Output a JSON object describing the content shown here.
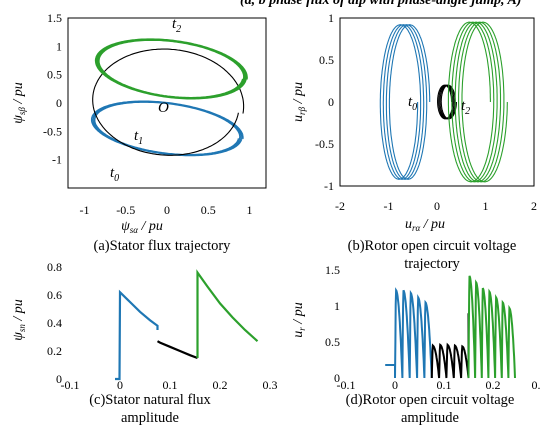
{
  "figure": {
    "top_caption_fragment": "(a, b phase flux of dip with phase-angle jump, A)"
  },
  "chart_data": [
    {
      "id": "a",
      "type": "line",
      "caption": "(a)Stator flux trajectory",
      "xlabel": "ψ_sα / pu",
      "ylabel": "ψ_sβ / pu",
      "xlim": [
        -1.2,
        1.2
      ],
      "ylim": [
        -1.5,
        1.5
      ],
      "xticks": [
        "-1",
        "-0.5",
        "0",
        "0.5",
        "1"
      ],
      "yticks": [
        "1.5",
        "1",
        "0.5",
        "0",
        "-0.5",
        "-1"
      ],
      "annotations": [
        "t2",
        "O",
        "t1",
        "t0"
      ],
      "series": [
        {
          "color": "#1f77b4",
          "shape": "spiral",
          "loops": 4,
          "cx": 0.0,
          "cy": -0.45,
          "rx": 0.98,
          "ry": 0.45
        },
        {
          "color": "#000000",
          "shape": "ellipse",
          "loops": 1,
          "cx": 0.0,
          "cy": 0.0,
          "rx": 0.98,
          "ry": 0.95
        },
        {
          "color": "#2ca02c",
          "shape": "spiral",
          "loops": 5,
          "cx": 0.05,
          "cy": 0.6,
          "rx": 0.98,
          "ry": 0.5
        }
      ]
    },
    {
      "id": "b",
      "type": "line",
      "caption": "(b)Rotor open circuit voltage trajectory",
      "xlabel": "u_rα / pu",
      "ylabel": "u_rβ / pu",
      "xlim": [
        -2,
        2
      ],
      "ylim": [
        -1,
        1
      ],
      "xticks": [
        "-2",
        "-1",
        "0",
        "1",
        "2"
      ],
      "yticks": [
        "1",
        "0.5",
        "0",
        "-0.5",
        "-1"
      ],
      "annotations": [
        "t0",
        "t2"
      ],
      "series": [
        {
          "color": "#1f77b4",
          "shape": "spiral",
          "loops": 4,
          "cx": -0.55,
          "cy": 0.0,
          "rx": 0.4,
          "ry": 0.92
        },
        {
          "color": "#000000",
          "shape": "spiral",
          "loops": 4,
          "cx": 0.15,
          "cy": 0.0,
          "rx": 0.15,
          "ry": 0.2
        },
        {
          "color": "#2ca02c",
          "shape": "spiral",
          "loops": 5,
          "cx": 0.65,
          "cy": 0.0,
          "rx": 0.45,
          "ry": 0.95
        }
      ]
    },
    {
      "id": "c",
      "type": "line",
      "caption_line1": "(c)Stator  natural flux",
      "caption_line2": "amplitude",
      "ylabel": "ψ_sn / pu",
      "xlim": [
        -0.1,
        0.3
      ],
      "ylim": [
        0,
        0.8
      ],
      "xticks": [
        "-0.1",
        "0",
        "0.1",
        "0.2",
        "0.3"
      ],
      "yticks": [
        "0.8",
        "0.6",
        "0.4",
        "0.2",
        "0"
      ],
      "series": [
        {
          "color": "#1f77b4",
          "x": [
            -0.01,
            -0.001,
            0,
            0.02,
            0.04,
            0.06,
            0.075,
            0.075
          ],
          "y": [
            0,
            0,
            0.62,
            0.55,
            0.48,
            0.42,
            0.38,
            0.35
          ]
        },
        {
          "color": "#000000",
          "x": [
            0.075,
            0.08,
            0.1,
            0.12,
            0.14,
            0.155
          ],
          "y": [
            0.27,
            0.26,
            0.23,
            0.2,
            0.17,
            0.15
          ]
        },
        {
          "color": "#2ca02c",
          "x": [
            0.155,
            0.155,
            0.175,
            0.2,
            0.225,
            0.25,
            0.275
          ],
          "y": [
            0.15,
            0.76,
            0.66,
            0.54,
            0.44,
            0.35,
            0.27
          ]
        }
      ]
    },
    {
      "id": "d",
      "type": "line",
      "caption_line1": "(d)Rotor open circuit voltage",
      "caption_line2": "amplitude",
      "ylabel": "u_r / pu",
      "xlim": [
        -0.1,
        0.3
      ],
      "ylim": [
        0,
        1.5
      ],
      "xticks": [
        "-0.1",
        "0",
        "0.1",
        "0.2",
        "0."
      ],
      "yticks": [
        "1.5",
        "1",
        "0.5",
        "0"
      ],
      "series": [
        {
          "color": "#1f77b4",
          "kind": "bumps",
          "x0": 0.0,
          "x1": 0.075,
          "n": 5,
          "peak": [
            1.22,
            1.22,
            1.18,
            1.12,
            1.05
          ],
          "lead": [
            -0.02,
            0.18
          ]
        },
        {
          "color": "#000000",
          "kind": "bumps",
          "x0": 0.075,
          "x1": 0.15,
          "n": 5,
          "peak": [
            0.45,
            0.46,
            0.46,
            0.45,
            0.44
          ],
          "tail": 0.9
        },
        {
          "color": "#2ca02c",
          "kind": "bumps",
          "x0": 0.15,
          "x1": 0.245,
          "n": 7,
          "peak": [
            1.42,
            1.33,
            1.25,
            1.2,
            1.12,
            1.05,
            0.97
          ]
        }
      ]
    }
  ]
}
